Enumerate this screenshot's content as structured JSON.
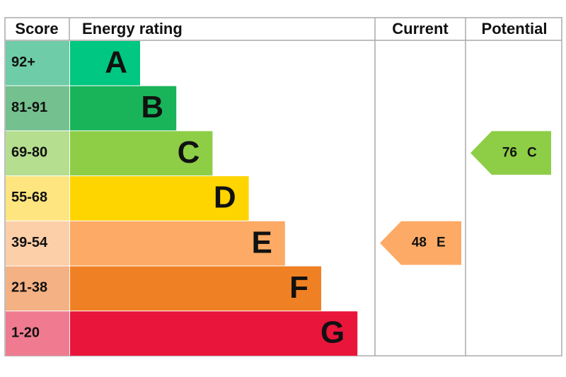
{
  "headers": {
    "score": "Score",
    "rating": "Energy rating",
    "current": "Current",
    "potential": "Potential"
  },
  "bands": [
    {
      "score": "92+",
      "letter": "A",
      "color": "#00c781",
      "score_color": "#6fcca8"
    },
    {
      "score": "81-91",
      "letter": "B",
      "color": "#19b459",
      "score_color": "#74c08e"
    },
    {
      "score": "69-80",
      "letter": "C",
      "color": "#8dce46",
      "score_color": "#b5de8f"
    },
    {
      "score": "55-68",
      "letter": "D",
      "color": "#ffd500",
      "score_color": "#ffe57f"
    },
    {
      "score": "39-54",
      "letter": "E",
      "color": "#fcaa65",
      "score_color": "#fdcfa8"
    },
    {
      "score": "21-38",
      "letter": "F",
      "color": "#ef8023",
      "score_color": "#f4b183"
    },
    {
      "score": "1-20",
      "letter": "G",
      "color": "#e9153b",
      "score_color": "#f07b91"
    }
  ],
  "current": {
    "value": 48,
    "letter": "E"
  },
  "potential": {
    "value": 76,
    "letter": "C"
  }
}
